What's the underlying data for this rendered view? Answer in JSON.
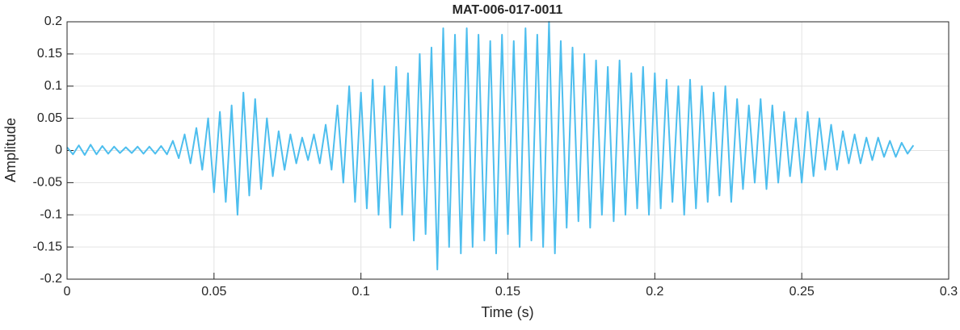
{
  "chart_data": {
    "type": "line",
    "title": "MAT-006-017-0011",
    "x_label": "Time (s)",
    "y_label": "Amplitude",
    "x": [
      0,
      0.002,
      0.004,
      0.006,
      0.008,
      0.01,
      0.012,
      0.014,
      0.016,
      0.018,
      0.02,
      0.022,
      0.024,
      0.026,
      0.028,
      0.03,
      0.032,
      0.034,
      0.036,
      0.038,
      0.04,
      0.042,
      0.044,
      0.046,
      0.048,
      0.05,
      0.052,
      0.054,
      0.056,
      0.058,
      0.06,
      0.062,
      0.064,
      0.066,
      0.068,
      0.07,
      0.072,
      0.074,
      0.076,
      0.078,
      0.08,
      0.082,
      0.084,
      0.086,
      0.088,
      0.09,
      0.092,
      0.094,
      0.096,
      0.098,
      0.1,
      0.102,
      0.104,
      0.106,
      0.108,
      0.11,
      0.112,
      0.114,
      0.116,
      0.118,
      0.12,
      0.122,
      0.124,
      0.126,
      0.128,
      0.13,
      0.132,
      0.134,
      0.136,
      0.138,
      0.14,
      0.142,
      0.144,
      0.146,
      0.148,
      0.15,
      0.152,
      0.154,
      0.156,
      0.158,
      0.16,
      0.162,
      0.164,
      0.166,
      0.168,
      0.17,
      0.172,
      0.174,
      0.176,
      0.178,
      0.18,
      0.182,
      0.184,
      0.186,
      0.188,
      0.19,
      0.192,
      0.194,
      0.196,
      0.198,
      0.2,
      0.202,
      0.204,
      0.206,
      0.208,
      0.21,
      0.212,
      0.214,
      0.216,
      0.218,
      0.22,
      0.222,
      0.224,
      0.226,
      0.228,
      0.23,
      0.232,
      0.234,
      0.236,
      0.238,
      0.24,
      0.242,
      0.244,
      0.246,
      0.248,
      0.25,
      0.252,
      0.254,
      0.256,
      0.258,
      0.26,
      0.262,
      0.264,
      0.266,
      0.268,
      0.27,
      0.272,
      0.274,
      0.276,
      0.278,
      0.28,
      0.282,
      0.284,
      0.286,
      0.288
    ],
    "series": [
      {
        "color": "#4DBEEE",
        "values": [
          0.005,
          -0.006,
          0.008,
          -0.007,
          0.009,
          -0.006,
          0.007,
          -0.005,
          0.006,
          -0.004,
          0.005,
          -0.004,
          0.006,
          -0.005,
          0.006,
          -0.005,
          0.007,
          -0.006,
          0.015,
          -0.012,
          0.025,
          -0.02,
          0.035,
          -0.03,
          0.05,
          -0.065,
          0.06,
          -0.08,
          0.07,
          -0.1,
          0.09,
          -0.07,
          0.08,
          -0.06,
          0.05,
          -0.04,
          0.03,
          -0.03,
          0.025,
          -0.02,
          0.02,
          -0.015,
          0.025,
          -0.02,
          0.04,
          -0.03,
          0.07,
          -0.05,
          0.1,
          -0.08,
          0.09,
          -0.09,
          0.11,
          -0.1,
          0.1,
          -0.12,
          0.13,
          -0.1,
          0.12,
          -0.14,
          0.15,
          -0.13,
          0.16,
          -0.185,
          0.19,
          -0.15,
          0.18,
          -0.16,
          0.19,
          -0.15,
          0.18,
          -0.14,
          0.17,
          -0.16,
          0.18,
          -0.13,
          0.17,
          -0.15,
          0.19,
          -0.14,
          0.18,
          -0.15,
          0.2,
          -0.16,
          0.17,
          -0.12,
          0.16,
          -0.11,
          0.15,
          -0.12,
          0.14,
          -0.1,
          0.13,
          -0.11,
          0.14,
          -0.1,
          0.12,
          -0.09,
          0.13,
          -0.1,
          0.12,
          -0.09,
          0.11,
          -0.08,
          0.1,
          -0.1,
          0.11,
          -0.09,
          0.1,
          -0.08,
          0.09,
          -0.07,
          0.1,
          -0.08,
          0.08,
          -0.06,
          0.07,
          -0.05,
          0.08,
          -0.06,
          0.07,
          -0.05,
          0.06,
          -0.04,
          0.05,
          -0.05,
          0.06,
          -0.04,
          0.05,
          -0.03,
          0.04,
          -0.03,
          0.03,
          -0.02,
          0.025,
          -0.02,
          0.02,
          -0.015,
          0.02,
          -0.01,
          0.015,
          -0.01,
          0.012,
          -0.005,
          0.008
        ]
      }
    ],
    "xlim": [
      0,
      0.3
    ],
    "xticks": [
      0,
      0.05,
      0.1,
      0.15,
      0.2,
      0.25,
      0.3
    ],
    "ylim": [
      -0.2,
      0.2
    ],
    "yticks": [
      -0.2,
      -0.15,
      -0.1,
      -0.05,
      0,
      0.05,
      0.1,
      0.15,
      0.2
    ],
    "grid": true
  }
}
